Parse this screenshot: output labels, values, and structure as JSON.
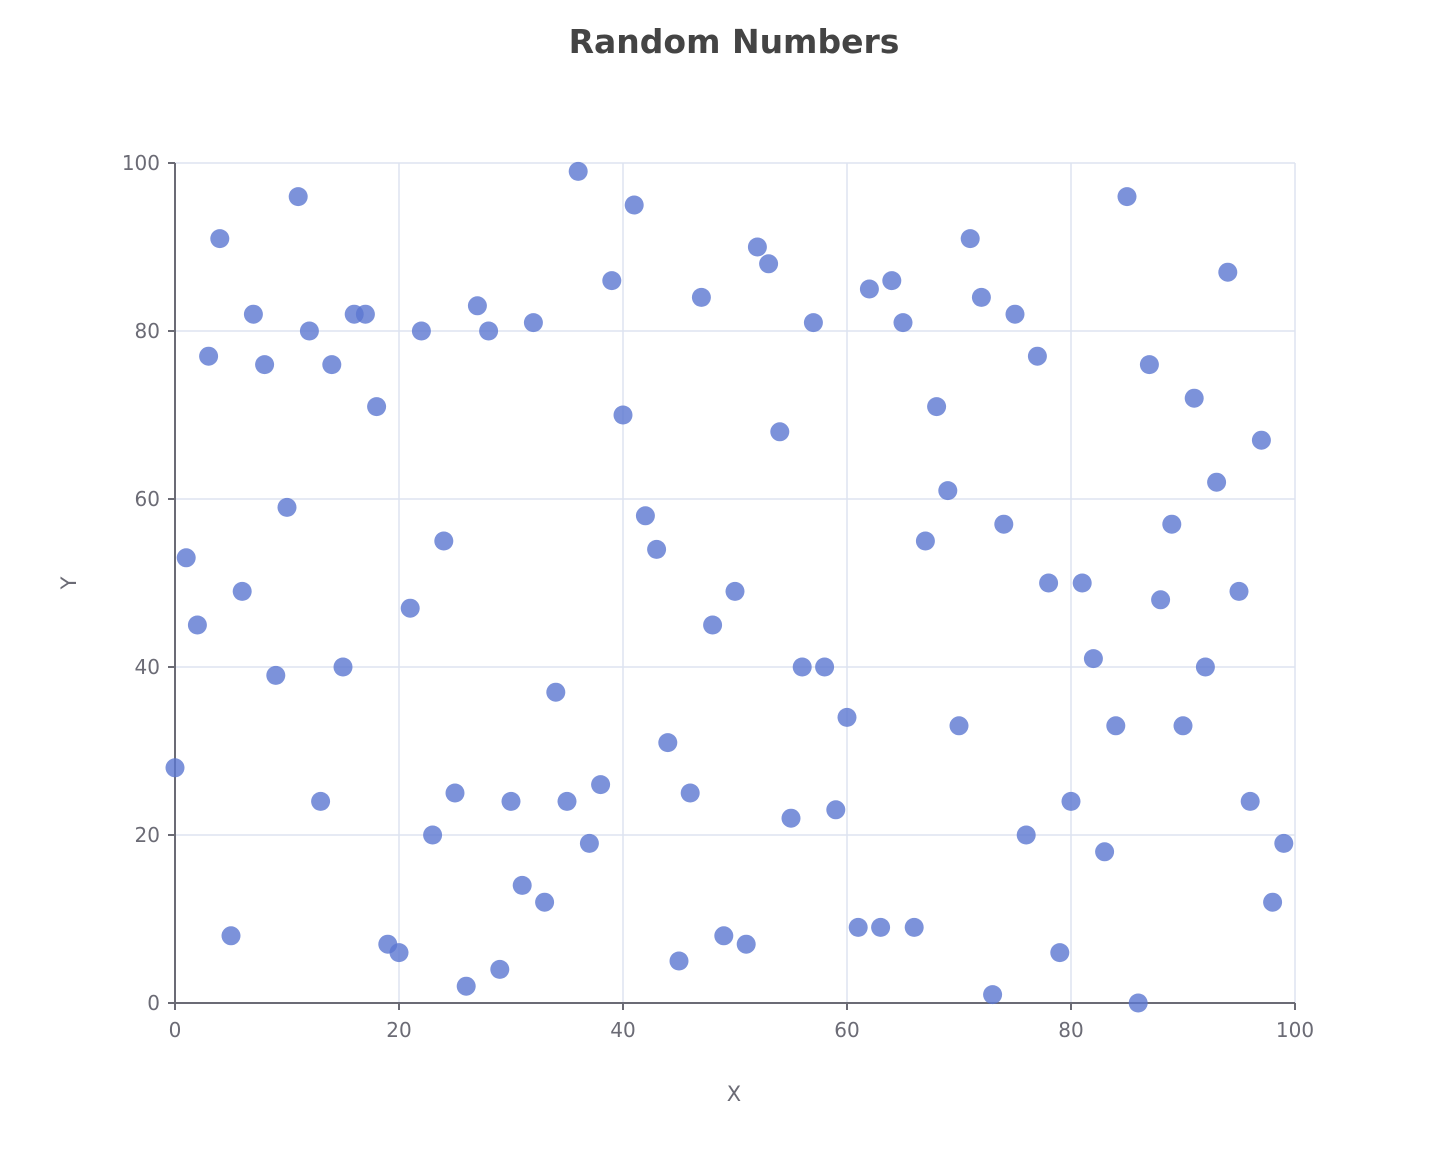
{
  "chart_data": {
    "type": "scatter",
    "title": "Random Numbers",
    "xlabel": "X",
    "ylabel": "Y",
    "xlim": [
      0,
      100
    ],
    "ylim": [
      0,
      100
    ],
    "x_ticks": [
      0,
      20,
      40,
      60,
      80,
      100
    ],
    "y_ticks": [
      0,
      20,
      40,
      60,
      80,
      100
    ],
    "grid": true,
    "marker_color": "#5b77d1",
    "grid_color": "#dde3f0",
    "axis_color": "#6b6b75",
    "series": [
      {
        "x": [
          0,
          1,
          2,
          3,
          4,
          5,
          6,
          7,
          8,
          9,
          10,
          11,
          12,
          13,
          14,
          15,
          16,
          17,
          18,
          19,
          20,
          21,
          22,
          23,
          24,
          25,
          26,
          27,
          28,
          29,
          30,
          31,
          32,
          33,
          34,
          35,
          36,
          37,
          38,
          39,
          40,
          41,
          42,
          43,
          44,
          45,
          46,
          47,
          48,
          49,
          50,
          51,
          52,
          53,
          54,
          55,
          56,
          57,
          58,
          59,
          60,
          61,
          62,
          63,
          64,
          65,
          66,
          67,
          68,
          69,
          70,
          71,
          72,
          73,
          74,
          75,
          76,
          77,
          78,
          79,
          80,
          81,
          82,
          83,
          84,
          85,
          86,
          87,
          88,
          89,
          90,
          91,
          92,
          93,
          94,
          95,
          96,
          97,
          98,
          99
        ],
        "y": [
          28,
          53,
          45,
          77,
          91,
          8,
          49,
          82,
          76,
          39,
          59,
          96,
          80,
          24,
          76,
          40,
          82,
          82,
          71,
          7,
          6,
          47,
          80,
          20,
          55,
          25,
          2,
          83,
          80,
          4,
          24,
          14,
          81,
          12,
          37,
          24,
          99,
          19,
          26,
          86,
          70,
          95,
          58,
          54,
          31,
          5,
          25,
          84,
          45,
          8,
          49,
          7,
          90,
          88,
          68,
          22,
          40,
          81,
          40,
          23,
          34,
          9,
          85,
          9,
          86,
          81,
          9,
          55,
          71,
          61,
          33,
          91,
          84,
          1,
          57,
          82,
          20,
          77,
          50,
          6,
          24,
          50,
          41,
          18,
          33,
          96,
          0,
          76,
          48,
          57,
          33,
          72,
          40,
          62,
          87,
          49,
          24,
          67,
          12,
          19
        ]
      }
    ]
  }
}
